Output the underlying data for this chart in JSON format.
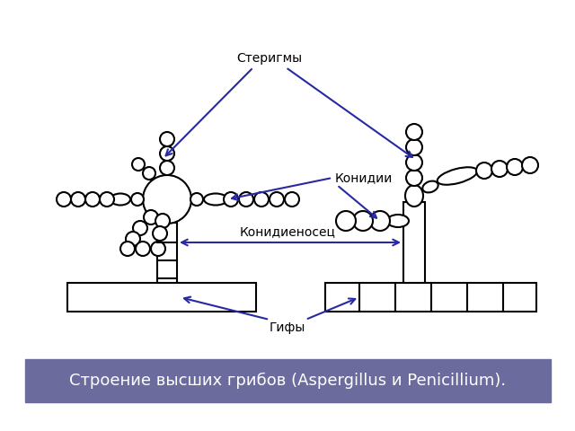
{
  "title": "Строение высших грибов (Aspergillus и Penicillium).",
  "label_sterigmy": "Стеригмы",
  "label_konidii": "Конидии",
  "label_konidienosec": "Конидиеносец",
  "label_giphy": "Гифы",
  "arrow_color": "#2929a3",
  "line_color": "#000000",
  "bg_color": "#ffffff",
  "title_bg": "#6b6b9e",
  "title_fg": "#ffffff",
  "lw": 1.5
}
